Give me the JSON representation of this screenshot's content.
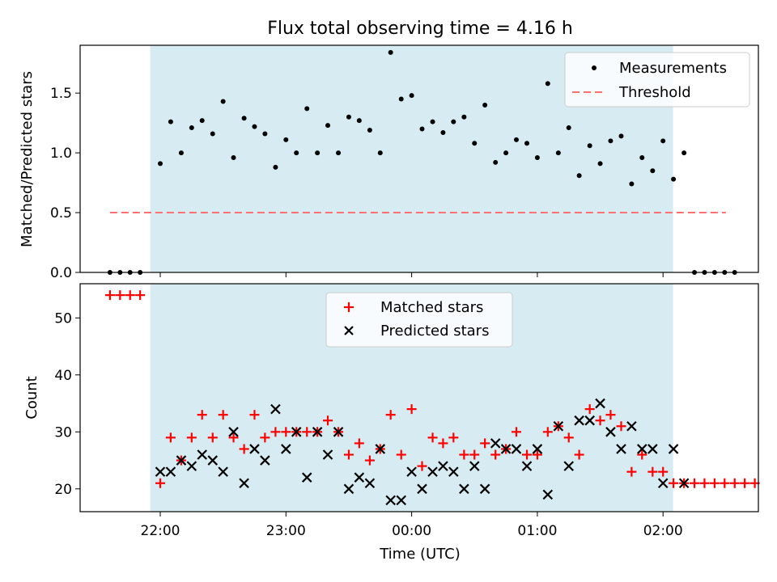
{
  "chart_data": [
    {
      "type": "scatter",
      "title": "Flux total observing time = 4.16 h",
      "xlabel": "",
      "ylabel": "Matched/Predicted stars",
      "ylim": [
        0,
        1.9
      ],
      "yticks": [
        "0.0",
        "0.5",
        "1.0",
        "1.5"
      ],
      "shaded_interval": [
        -0.08,
        4.08
      ],
      "legend": {
        "placement": "top-right",
        "entries": [
          {
            "label": "Measurements",
            "marker": "dot",
            "color": "#000000"
          },
          {
            "label": "Threshold",
            "marker": "dashed-line",
            "color": "#ff7070"
          }
        ]
      },
      "threshold": {
        "value": 0.5,
        "x_range": [
          -0.4,
          4.5
        ],
        "color": "#ff7070"
      },
      "series": [
        {
          "name": "Measurements",
          "color": "#000000",
          "points": [
            [
              -0.4,
              0.0
            ],
            [
              -0.32,
              0.0
            ],
            [
              -0.24,
              0.0
            ],
            [
              -0.16,
              0.0
            ],
            [
              0.0,
              0.91
            ],
            [
              0.083,
              1.26
            ],
            [
              0.167,
              1.0
            ],
            [
              0.25,
              1.21
            ],
            [
              0.333,
              1.27
            ],
            [
              0.417,
              1.16
            ],
            [
              0.5,
              1.43
            ],
            [
              0.583,
              0.96
            ],
            [
              0.667,
              1.29
            ],
            [
              0.75,
              1.22
            ],
            [
              0.833,
              1.16
            ],
            [
              0.917,
              0.88
            ],
            [
              1.0,
              1.11
            ],
            [
              1.083,
              1.0
            ],
            [
              1.167,
              1.37
            ],
            [
              1.25,
              1.0
            ],
            [
              1.333,
              1.23
            ],
            [
              1.417,
              1.0
            ],
            [
              1.5,
              1.3
            ],
            [
              1.583,
              1.27
            ],
            [
              1.667,
              1.19
            ],
            [
              1.75,
              1.0
            ],
            [
              1.833,
              1.84
            ],
            [
              1.917,
              1.45
            ],
            [
              2.0,
              1.48
            ],
            [
              2.083,
              1.2
            ],
            [
              2.167,
              1.26
            ],
            [
              2.25,
              1.17
            ],
            [
              2.333,
              1.26
            ],
            [
              2.417,
              1.3
            ],
            [
              2.5,
              1.08
            ],
            [
              2.583,
              1.4
            ],
            [
              2.667,
              0.92
            ],
            [
              2.75,
              1.0
            ],
            [
              2.833,
              1.11
            ],
            [
              2.917,
              1.08
            ],
            [
              3.0,
              0.96
            ],
            [
              3.083,
              1.58
            ],
            [
              3.167,
              1.0
            ],
            [
              3.25,
              1.21
            ],
            [
              3.333,
              0.81
            ],
            [
              3.417,
              1.06
            ],
            [
              3.5,
              0.91
            ],
            [
              3.583,
              1.1
            ],
            [
              3.667,
              1.14
            ],
            [
              3.75,
              0.74
            ],
            [
              3.833,
              0.96
            ],
            [
              3.917,
              0.85
            ],
            [
              4.0,
              1.1
            ],
            [
              4.083,
              0.78
            ],
            [
              4.167,
              1.0
            ],
            [
              4.25,
              0.0
            ],
            [
              4.33,
              0.0
            ],
            [
              4.41,
              0.0
            ],
            [
              4.49,
              0.0
            ],
            [
              4.57,
              0.0
            ]
          ]
        }
      ]
    },
    {
      "type": "scatter",
      "title": "",
      "xlabel": "Time (UTC)",
      "ylabel": "Count",
      "ylim": [
        16,
        56
      ],
      "yticks": [
        "20",
        "30",
        "40",
        "50"
      ],
      "xticks": [
        "22:00",
        "23:00",
        "00:00",
        "01:00",
        "02:00"
      ],
      "shaded_interval": [
        -0.08,
        4.08
      ],
      "legend": {
        "placement": "top-center",
        "entries": [
          {
            "label": "Matched stars",
            "marker": "plus",
            "color": "#ff0000"
          },
          {
            "label": "Predicted stars",
            "marker": "x",
            "color": "#000000"
          }
        ]
      },
      "series": [
        {
          "name": "Matched stars",
          "color": "#ff0000",
          "points": [
            [
              -0.4,
              54
            ],
            [
              -0.32,
              54
            ],
            [
              -0.24,
              54
            ],
            [
              -0.16,
              54
            ],
            [
              0.0,
              21
            ],
            [
              0.083,
              29
            ],
            [
              0.167,
              25
            ],
            [
              0.25,
              29
            ],
            [
              0.333,
              33
            ],
            [
              0.417,
              29
            ],
            [
              0.5,
              33
            ],
            [
              0.583,
              29
            ],
            [
              0.667,
              27
            ],
            [
              0.75,
              33
            ],
            [
              0.833,
              29
            ],
            [
              0.917,
              30
            ],
            [
              1.0,
              30
            ],
            [
              1.083,
              30
            ],
            [
              1.167,
              30
            ],
            [
              1.25,
              30
            ],
            [
              1.333,
              32
            ],
            [
              1.417,
              30
            ],
            [
              1.5,
              26
            ],
            [
              1.583,
              28
            ],
            [
              1.667,
              25
            ],
            [
              1.75,
              27
            ],
            [
              1.833,
              33
            ],
            [
              1.917,
              26
            ],
            [
              2.0,
              34
            ],
            [
              2.083,
              24
            ],
            [
              2.167,
              29
            ],
            [
              2.25,
              28
            ],
            [
              2.333,
              29
            ],
            [
              2.417,
              26
            ],
            [
              2.5,
              26
            ],
            [
              2.583,
              28
            ],
            [
              2.667,
              26
            ],
            [
              2.75,
              27
            ],
            [
              2.833,
              30
            ],
            [
              2.917,
              26
            ],
            [
              3.0,
              26
            ],
            [
              3.083,
              30
            ],
            [
              3.167,
              31
            ],
            [
              3.25,
              29
            ],
            [
              3.333,
              26
            ],
            [
              3.417,
              34
            ],
            [
              3.5,
              32
            ],
            [
              3.583,
              33
            ],
            [
              3.667,
              31
            ],
            [
              3.75,
              23
            ],
            [
              3.833,
              26
            ],
            [
              3.917,
              23
            ],
            [
              4.0,
              23
            ],
            [
              4.083,
              21
            ],
            [
              4.167,
              21
            ],
            [
              4.25,
              21
            ],
            [
              4.33,
              21
            ],
            [
              4.41,
              21
            ],
            [
              4.49,
              21
            ],
            [
              4.57,
              21
            ],
            [
              4.65,
              21
            ],
            [
              4.73,
              21
            ]
          ]
        },
        {
          "name": "Predicted stars",
          "color": "#000000",
          "points": [
            [
              0.0,
              23
            ],
            [
              0.083,
              23
            ],
            [
              0.167,
              25
            ],
            [
              0.25,
              24
            ],
            [
              0.333,
              26
            ],
            [
              0.417,
              25
            ],
            [
              0.5,
              23
            ],
            [
              0.583,
              30
            ],
            [
              0.667,
              21
            ],
            [
              0.75,
              27
            ],
            [
              0.833,
              25
            ],
            [
              0.917,
              34
            ],
            [
              1.0,
              27
            ],
            [
              1.083,
              30
            ],
            [
              1.167,
              22
            ],
            [
              1.25,
              30
            ],
            [
              1.333,
              26
            ],
            [
              1.417,
              30
            ],
            [
              1.5,
              20
            ],
            [
              1.583,
              22
            ],
            [
              1.667,
              21
            ],
            [
              1.75,
              27
            ],
            [
              1.833,
              18
            ],
            [
              1.917,
              18
            ],
            [
              2.0,
              23
            ],
            [
              2.083,
              20
            ],
            [
              2.167,
              23
            ],
            [
              2.25,
              24
            ],
            [
              2.333,
              23
            ],
            [
              2.417,
              20
            ],
            [
              2.5,
              24
            ],
            [
              2.583,
              20
            ],
            [
              2.667,
              28
            ],
            [
              2.75,
              27
            ],
            [
              2.833,
              27
            ],
            [
              2.917,
              24
            ],
            [
              3.0,
              27
            ],
            [
              3.083,
              19
            ],
            [
              3.167,
              31
            ],
            [
              3.25,
              24
            ],
            [
              3.333,
              32
            ],
            [
              3.417,
              32
            ],
            [
              3.5,
              35
            ],
            [
              3.583,
              30
            ],
            [
              3.667,
              27
            ],
            [
              3.75,
              31
            ],
            [
              3.833,
              27
            ],
            [
              3.917,
              27
            ],
            [
              4.0,
              21
            ],
            [
              4.083,
              27
            ],
            [
              4.167,
              21
            ]
          ]
        }
      ]
    }
  ]
}
